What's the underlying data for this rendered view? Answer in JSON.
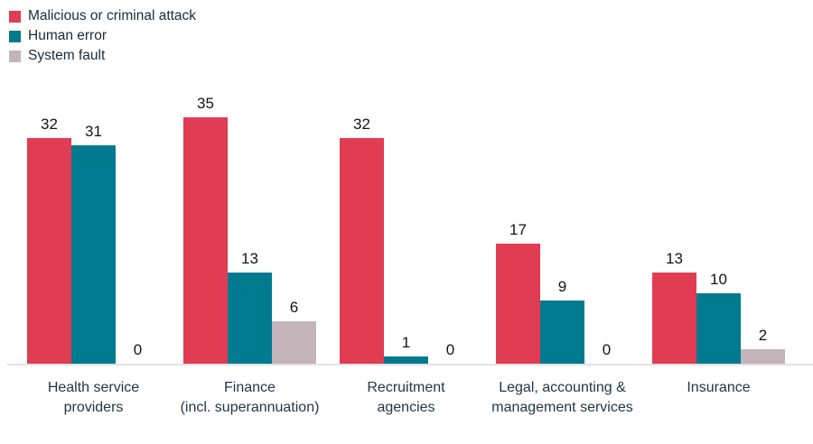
{
  "chart_data": {
    "type": "bar",
    "title": "",
    "xlabel": "",
    "ylabel": "",
    "ylim": [
      0,
      35
    ],
    "grid": false,
    "legend_position": "top-left",
    "value_labels_shown": true,
    "categories": [
      "Health service providers",
      "Finance (incl. superannuation)",
      "Recruitment agencies",
      "Legal, accounting & management services",
      "Insurance"
    ],
    "category_lines": [
      [
        "Health service",
        "providers"
      ],
      [
        "Finance",
        "(incl. superannuation)"
      ],
      [
        "Recruitment",
        "agencies"
      ],
      [
        "Legal, accounting &",
        "management services"
      ],
      [
        "Insurance"
      ]
    ],
    "series": [
      {
        "name": "Malicious or criminal attack",
        "color": "#e03c53",
        "values": [
          32,
          35,
          32,
          17,
          13
        ]
      },
      {
        "name": "Human error",
        "color": "#007a8f",
        "values": [
          31,
          13,
          1,
          9,
          10
        ]
      },
      {
        "name": "System fault",
        "color": "#c2b4b9",
        "values": [
          0,
          6,
          0,
          0,
          2
        ]
      }
    ],
    "colors": {
      "background": "#ffffff",
      "axis_line": "#e2e2e2",
      "value_label_text": "#141414",
      "category_label_text": "#233744",
      "legend_text": "#1d2b33"
    }
  }
}
